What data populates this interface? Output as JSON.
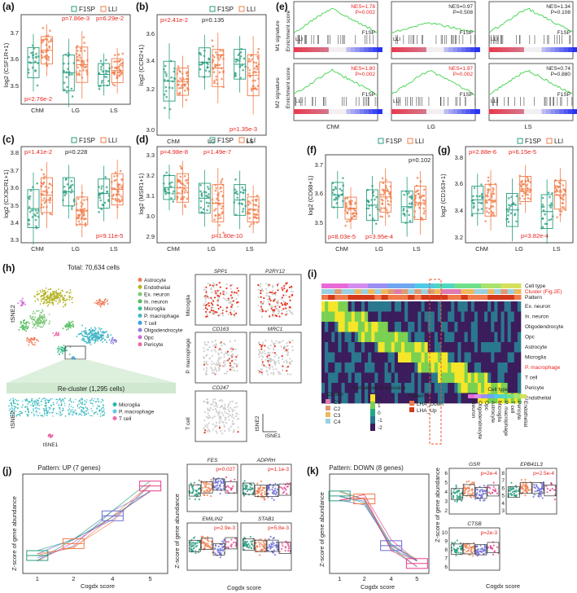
{
  "colors": {
    "f1sp": "#2a9d7f",
    "lli": "#f07c4a",
    "sig_red": "#e8221c",
    "gsea_line": "#3dd34a",
    "cogdx1": "#2a9d7f",
    "cogdx2": "#f07c4a",
    "cogdx4": "#6b6bd6",
    "cogdx5": "#e83e8c"
  },
  "legend": {
    "f1sp": "F1SP",
    "lli": "LLI"
  },
  "groups": [
    "ChM",
    "LG",
    "LS"
  ],
  "panels": {
    "a": {
      "label": "(a)",
      "ylabel": "log2 (CSF1R+1)",
      "yticks": [
        "3.7",
        "3.6",
        "3.5"
      ],
      "pvals": [
        "p=7.86e-3",
        "p=6.29e-2",
        "p=2.76e-2"
      ]
    },
    "b": {
      "label": "(b)",
      "ylabel": "log2 (CCR2+1)",
      "yticks": [
        "3.6",
        "3.4",
        "3.2",
        "3.0"
      ],
      "pvals": [
        "p=2.41e-2",
        "p=0.135",
        "p=1.35e-3"
      ]
    },
    "c": {
      "label": "(c)",
      "ylabel": "log2 (CX3CR1+1)",
      "yticks": [
        "3.8",
        "3.7",
        "3.6",
        "3.5",
        "3.4",
        "3.3"
      ],
      "pvals": [
        "p=1.41e-2",
        "p=0.228",
        "p=9.11e-5"
      ]
    },
    "d": {
      "label": "(d)",
      "ylabel": "log2 (MSR1+1)",
      "yticks": [
        "3.3",
        "3.2",
        "3.1",
        "3.0",
        "2.9"
      ],
      "pvals": [
        "p=4.98e-8",
        "p=1.49e-7",
        "p=1.80e-10"
      ]
    },
    "e": {
      "label": "(e)",
      "ylabel_top": "Enrichment score",
      "ylabel_bottom": "Enrichment score",
      "row1": "M1 signature",
      "row2": "M2 signature",
      "top_stats": [
        {
          "nes": "NES=1.78",
          "p": "P=0.002"
        },
        {
          "nes": "NES=0.97",
          "p": "P=0.508"
        },
        {
          "nes": "NES=1.34",
          "p": "P=0.108"
        }
      ],
      "bottom_stats": [
        {
          "nes": "NES=1.80",
          "p": "P=0.002"
        },
        {
          "nes": "NES=1.97",
          "p": "P=0.002"
        },
        {
          "nes": "NES=0.74",
          "p": "P=0.880"
        }
      ],
      "f1sp": "F1SP",
      "lli": "LLI"
    },
    "f": {
      "label": "(f)",
      "ylabel": "log2 (CD68+1)",
      "yticks": [
        "3.7",
        "3.6",
        "3.5"
      ],
      "pvals": [
        "p=0.102",
        "p=8.03e-5",
        "p=3.95e-4"
      ]
    },
    "g": {
      "label": "(g)",
      "ylabel": "log2 (CD163+1)",
      "yticks": [
        "3.8",
        "3.6",
        "3.4",
        "3.2"
      ],
      "pvals": [
        "p=2.88e-6",
        "p=6.15e-5",
        "p=3.82e-4"
      ]
    },
    "h": {
      "label": "(h)",
      "total": "Total: 70,634 cells",
      "recluster": "Re-cluster (1,295 cells)",
      "tsne2": "tSNE2",
      "tsne1": "tSNE1",
      "cell_types": [
        "Astrocyte",
        "Endothelial",
        "Ex. neuron",
        "In. neuron",
        "Microglia",
        "P. macrophage",
        "T cell",
        "Oligodendrocyte",
        "Opc",
        "Pericyte"
      ],
      "cell_colors": [
        "#f07c5a",
        "#b5b52a",
        "#7ec97a",
        "#4cbd5a",
        "#3cc08d",
        "#44b7c7",
        "#3aa0e8",
        "#8e7fe0",
        "#d06ad6",
        "#ee6aa6"
      ],
      "sub_types": [
        "Microglia",
        "P. macrophage",
        "T cell"
      ],
      "sub_colors": [
        "#29b6b0",
        "#5bc6e8",
        "#ee6aa6"
      ],
      "genes": [
        "SPP1",
        "P2RY12",
        "CD163",
        "MRC1",
        "CD247"
      ],
      "rows": [
        "Microglia",
        "P. macrophage",
        "T cell"
      ]
    },
    "i": {
      "label": "(i)",
      "track_labels": [
        "Cell type",
        "Cluster (Fig.2E)",
        "Pattern"
      ],
      "row_labels": [
        "Ex. neuron",
        "In. neuron",
        "Oligodendrocyte",
        "Opc",
        "Astrocyte",
        "Microglia",
        "P. macrophage",
        "T cell",
        "Pericyte",
        "Endothelial"
      ],
      "cluster_title": "Cluster",
      "clusters": [
        "C1",
        "C2",
        "C3",
        "C4"
      ],
      "expr_title": "Normalized Expression",
      "expr_ticks": [
        "2",
        "1",
        "0",
        "-1",
        "-2"
      ],
      "pattern_title": "Pattern",
      "patterns": [
        "LHA_Down",
        "LHA_Up"
      ],
      "celltype_title": "Cell type",
      "celltype_labels": [
        "Neuron",
        "Oligodendrocyte",
        "Opc",
        "Astrocyte",
        "Microglia",
        "P. macrophage",
        "T cell",
        "Pericyte",
        "Endothelial"
      ]
    },
    "j": {
      "label": "(j)",
      "title": "Pattern: UP (7 genes)",
      "xlabel": "Cogdx score",
      "ylabel": "Z-score of gene abundance",
      "xticks": [
        "1",
        "2",
        "4",
        "5"
      ],
      "genes": [
        {
          "name": "FES",
          "p": "p=0.027"
        },
        {
          "name": "ADPRH",
          "p": "p=1.1e-3"
        },
        {
          "name": "EMILIN2",
          "p": "p=2.9e-3"
        },
        {
          "name": "STAB1",
          "p": "p=5.8e-3"
        }
      ]
    },
    "k": {
      "label": "(k)",
      "title": "Pattern: DOWN (8 genes)",
      "xlabel": "Cogdx score",
      "ylabel": "Z-score of gene abundance",
      "xticks": [
        "1",
        "2",
        "4",
        "5"
      ],
      "genes": [
        {
          "name": "GSR",
          "p": "p=2e-4",
          "yticks": [
            "6",
            "5",
            "4",
            "3",
            "2"
          ]
        },
        {
          "name": "EPB41L3",
          "p": "p=2.5e-4",
          "yticks": [
            "8",
            "7",
            "6",
            "5",
            "4",
            "3"
          ]
        },
        {
          "name": "CTSB",
          "p": "p=2e-3",
          "yticks": [
            "10",
            "9",
            "8",
            "7",
            "6"
          ]
        }
      ]
    }
  }
}
